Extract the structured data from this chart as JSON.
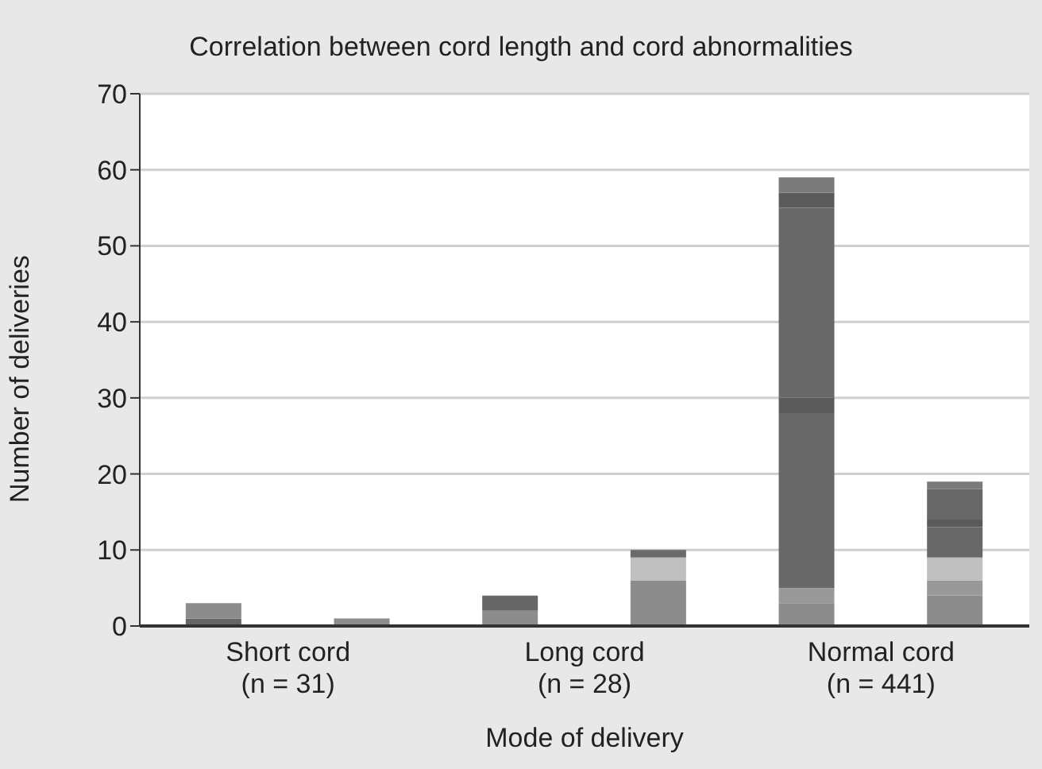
{
  "chart_data": {
    "type": "bar",
    "stacked": true,
    "title": "Correlation between cord length and cord abnormalities",
    "xlabel": "Mode of delivery",
    "ylabel": "Number of deliveries",
    "categories": [
      "Short cord\n(n = 31)",
      null,
      "Long cord\n(n = 28)",
      null,
      "Normal cord\n(n = 441)",
      null
    ],
    "series": [
      {
        "values": [
          1,
          1,
          2,
          6,
          3,
          4
        ],
        "colors": [
          "#666666",
          "#8c8c8c",
          "#8c8c8c",
          "#8c8c8c",
          "#8c8c8c",
          "#8c8c8c"
        ]
      },
      {
        "values": [
          2,
          null,
          2,
          3,
          2,
          2
        ],
        "colors": [
          "#8c8c8c",
          null,
          "#666666",
          "#bfbfbf",
          "#999999",
          "#999999"
        ]
      },
      {
        "values": [
          null,
          null,
          null,
          1,
          23,
          3
        ],
        "colors": [
          null,
          null,
          null,
          "#6b6b6b",
          "#686868",
          "#bfbfbf"
        ]
      },
      {
        "values": [
          null,
          null,
          null,
          null,
          2,
          4
        ],
        "colors": [
          null,
          null,
          null,
          null,
          "#5a5a5a",
          "#686868"
        ]
      },
      {
        "values": [
          null,
          null,
          null,
          null,
          25,
          1
        ],
        "colors": [
          null,
          null,
          null,
          null,
          "#686868",
          "#5a5a5a"
        ]
      },
      {
        "values": [
          null,
          null,
          null,
          null,
          2,
          4
        ],
        "colors": [
          null,
          null,
          null,
          null,
          "#5a5a5a",
          "#686868"
        ]
      },
      {
        "values": [
          null,
          null,
          null,
          null,
          2,
          1
        ],
        "colors": [
          null,
          null,
          null,
          null,
          "#7a7a7a",
          "#7a7a7a"
        ]
      }
    ],
    "ylim": [
      0,
      70
    ],
    "yticks": [
      0,
      10,
      20,
      30,
      40,
      50,
      60,
      70
    ],
    "grid": "y",
    "legend": false
  }
}
